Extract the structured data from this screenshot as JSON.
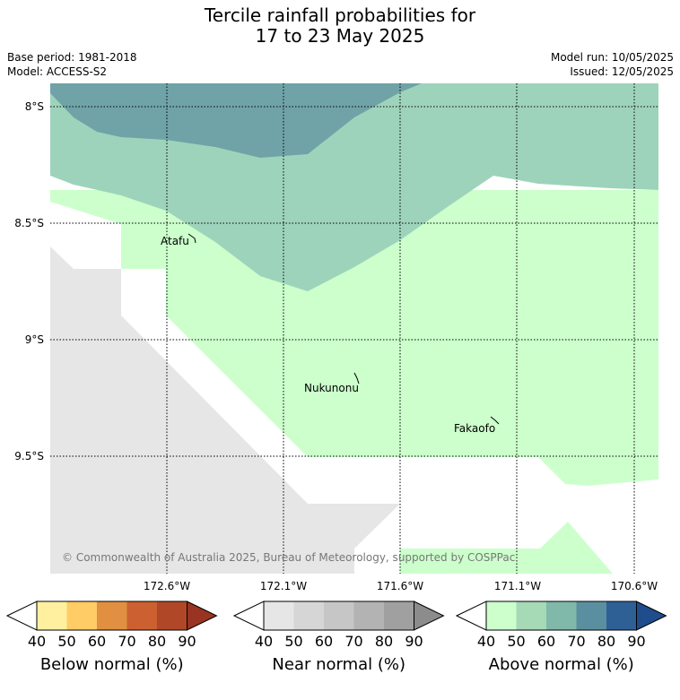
{
  "title_line1": "Tercile rainfall probabilities for",
  "title_line2": "17 to 23 May 2025",
  "base_period": "Base period: 1981-2018",
  "model": "Model: ACCESS-S2",
  "model_run": "Model run: 10/05/2025",
  "issued": "Issued: 12/05/2025",
  "lat_labels": [
    "8°S",
    "8.5°S",
    "9°S",
    "9.5°S"
  ],
  "lon_labels": [
    "172.6°W",
    "172.1°W",
    "171.6°W",
    "171.1°W",
    "170.6°W"
  ],
  "places": [
    "Atafu",
    "Nukunonu",
    "Fakaofo"
  ],
  "copyright": "© Commonwealth of Australia 2025, Bureau of Meteorology, supported by COSPPac",
  "colors": {
    "no_data": "#e6e6e6",
    "above_50": "#ccffcc",
    "above_60": "#9ed3bb",
    "above_70": "#6fa3a7"
  },
  "colorbars": [
    {
      "title": "Below normal (%)",
      "ticks": [
        "40",
        "50",
        "60",
        "70",
        "80",
        "90"
      ],
      "colors": [
        "#ffffff",
        "#fff0a0",
        "#ffcc66",
        "#e09040",
        "#cc6030",
        "#b04828",
        "#993322"
      ]
    },
    {
      "title": "Near normal (%)",
      "ticks": [
        "40",
        "50",
        "60",
        "70",
        "80",
        "90"
      ],
      "colors": [
        "#ffffff",
        "#e6e6e6",
        "#d6d6d6",
        "#c6c6c6",
        "#b3b3b3",
        "#a0a0a0",
        "#8c8c8c"
      ]
    },
    {
      "title": "Above normal (%)",
      "ticks": [
        "40",
        "50",
        "60",
        "70",
        "80",
        "90"
      ],
      "colors": [
        "#ffffff",
        "#ccffcc",
        "#a6d9b5",
        "#80b8aa",
        "#5a8f9f",
        "#2e6096",
        "#1e4c8c"
      ]
    }
  ]
}
